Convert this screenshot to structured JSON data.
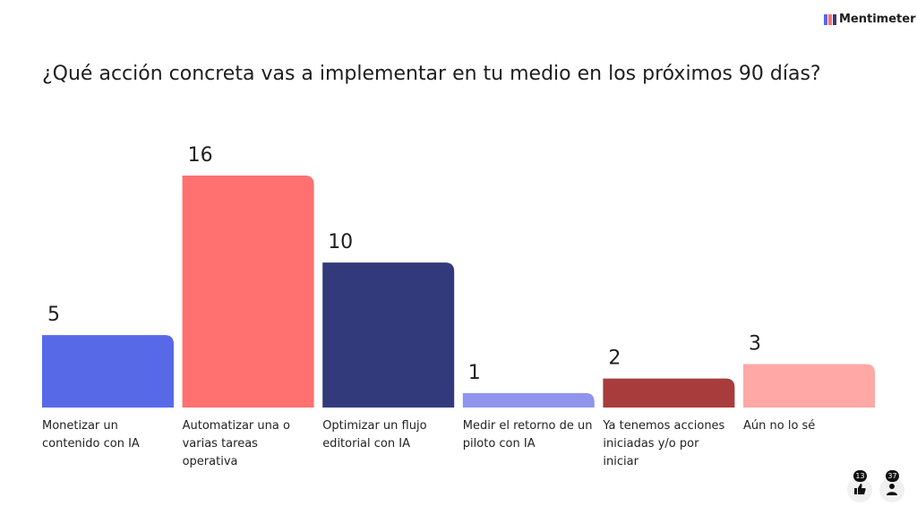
{
  "brand": "Mentimeter",
  "chart_data": {
    "type": "bar",
    "title": "¿Qué acción concreta vas a implementar en tu medio en los próximos 90 días?",
    "categories": [
      "Monetizar un contenido con IA",
      "Automatizar una o varias tareas operativa",
      "Optimizar un flujo editorial con IA",
      "Medir el retorno de un piloto con IA",
      "Ya tenemos acciones iniciadas y/o por iniciar",
      "Aún no lo sé"
    ],
    "values": [
      5,
      16,
      10,
      1,
      2,
      3
    ],
    "colors": [
      "#5769e7",
      "#ff7070",
      "#323a7c",
      "#9194ec",
      "#a83c3c",
      "#ffa8a6"
    ]
  },
  "footer": {
    "reactions": 13,
    "participants": 37
  }
}
